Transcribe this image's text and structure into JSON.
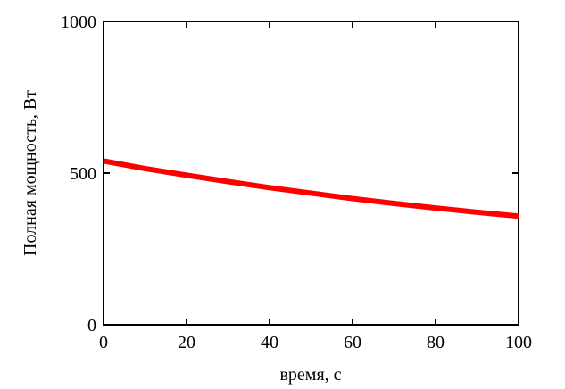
{
  "chart_data": {
    "type": "line",
    "xlabel": "время, с",
    "ylabel": "Полная мощность, Вт",
    "xlim": [
      0,
      100
    ],
    "ylim": [
      0,
      1000
    ],
    "xticks": [
      0,
      20,
      40,
      60,
      80,
      100
    ],
    "yticks": [
      0,
      500,
      1000
    ],
    "xtick_labels": [
      "0",
      "20",
      "40",
      "60",
      "80",
      "100"
    ],
    "ytick_labels": [
      "0",
      "500",
      "1000"
    ],
    "grid": false,
    "series": [
      {
        "color": "#ff0000",
        "x": [
          0,
          10,
          20,
          30,
          40,
          50,
          60,
          70,
          80,
          90,
          100
        ],
        "y": [
          540,
          515,
          493,
          472,
          452,
          434,
          416,
          400,
          385,
          371,
          358
        ]
      }
    ]
  }
}
